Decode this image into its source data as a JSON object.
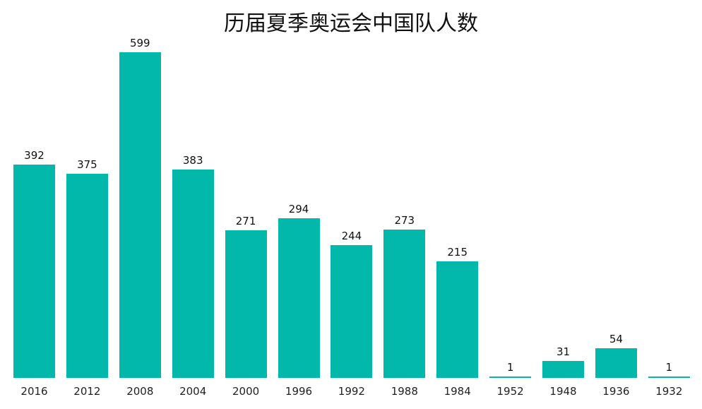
{
  "chart_data": {
    "type": "bar",
    "title": "历届夏季奥运会中国队人数",
    "categories": [
      "2016",
      "2012",
      "2008",
      "2004",
      "2000",
      "1996",
      "1992",
      "1988",
      "1984",
      "1952",
      "1948",
      "1936",
      "1932"
    ],
    "values": [
      392,
      375,
      599,
      383,
      271,
      294,
      244,
      273,
      215,
      1,
      31,
      54,
      1
    ],
    "xlabel": "",
    "ylabel": "",
    "ylim": [
      0,
      599
    ],
    "grid": false,
    "color": "#01b8aa"
  }
}
